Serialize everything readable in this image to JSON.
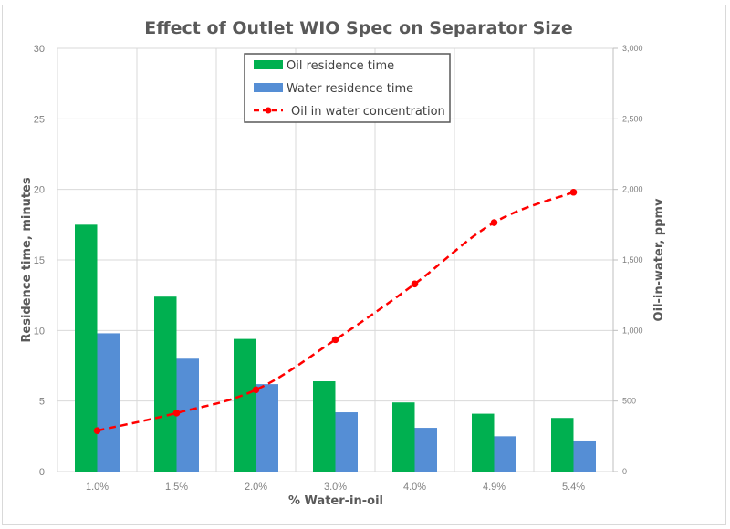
{
  "chart_data": {
    "type": "bar",
    "title": "Effect of Outlet WIO Spec on Separator Size",
    "xlabel": "% Water-in-oil",
    "ylabel": "Residence time, minutes",
    "y2label": "Oil-in-water, ppmv",
    "categories": [
      "1.0%",
      "1.5%",
      "2.0%",
      "3.0%",
      "4.0%",
      "4.9%",
      "5.4%"
    ],
    "ylim": [
      0,
      30
    ],
    "y2lim": [
      0,
      3000
    ],
    "yticks": [
      "0",
      "5",
      "10",
      "15",
      "20",
      "25",
      "30"
    ],
    "y2ticks": [
      "0",
      "500",
      "1,000",
      "1,500",
      "2,000",
      "2,500",
      "3,000"
    ],
    "grid": true,
    "legend_position": "top-center",
    "series": [
      {
        "name": "Oil residence time",
        "type": "bar",
        "axis": "left",
        "color": "#00b050",
        "values": [
          17.5,
          12.4,
          9.4,
          6.4,
          4.9,
          4.1,
          3.8
        ]
      },
      {
        "name": "Water residence time",
        "type": "bar",
        "axis": "left",
        "color": "#558ed5",
        "values": [
          9.8,
          8.0,
          6.2,
          4.2,
          3.1,
          2.5,
          2.2
        ]
      },
      {
        "name": "Oil in water concentration",
        "type": "line",
        "axis": "right",
        "color": "#ff0000",
        "style": "dashed",
        "values": [
          290,
          415,
          580,
          935,
          1330,
          1765,
          1980
        ]
      }
    ]
  }
}
